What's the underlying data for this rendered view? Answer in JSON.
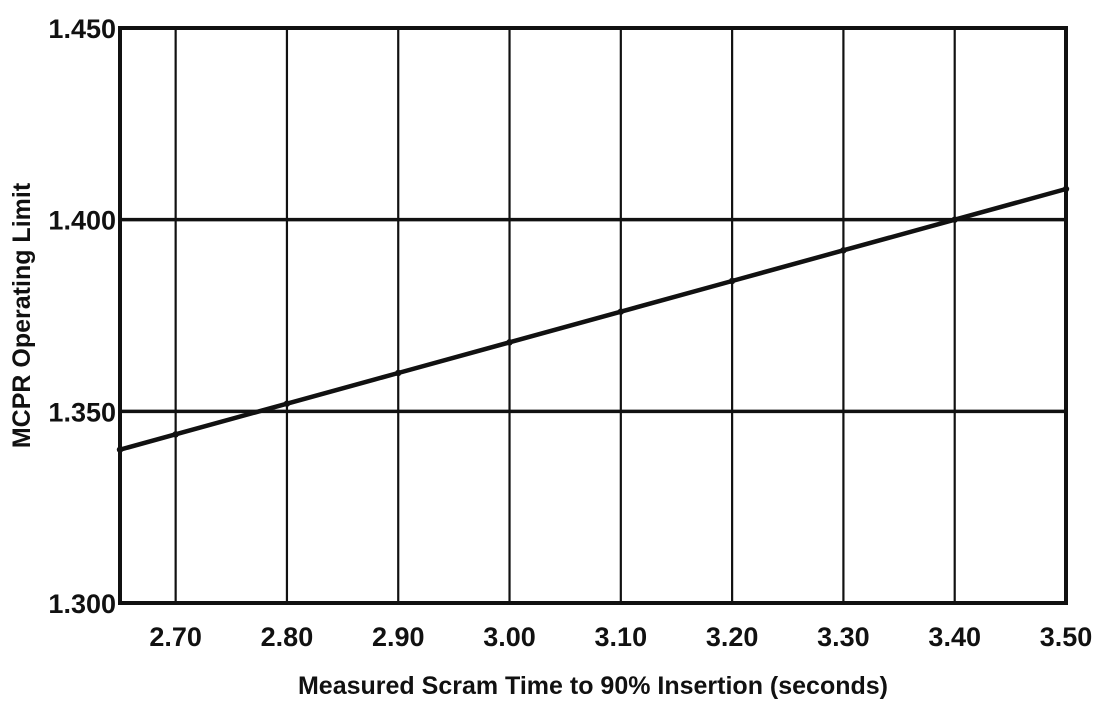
{
  "chart_data": {
    "type": "line",
    "title": "",
    "xlabel": "Measured Scram Time to 90% Insertion (seconds)",
    "ylabel": "MCPR Operating Limit",
    "xlim": [
      2.65,
      3.5
    ],
    "ylim": [
      1.3,
      1.45
    ],
    "x_ticks": [
      2.7,
      2.8,
      2.9,
      3.0,
      3.1,
      3.2,
      3.3,
      3.4,
      3.5
    ],
    "x_tick_labels": [
      "2.70",
      "2.80",
      "2.90",
      "3.00",
      "3.10",
      "3.20",
      "3.30",
      "3.40",
      "3.50"
    ],
    "y_ticks": [
      1.3,
      1.35,
      1.4,
      1.45
    ],
    "y_tick_labels": [
      "1.300",
      "1.350",
      "1.400",
      "1.450"
    ],
    "grid": {
      "vertical": true,
      "horizontal": true
    },
    "legend": "none",
    "series": [
      {
        "x": [
          2.65,
          2.7,
          2.8,
          2.9,
          3.0,
          3.1,
          3.2,
          3.3,
          3.4,
          3.5
        ],
        "values": [
          1.34,
          1.344,
          1.352,
          1.36,
          1.368,
          1.376,
          1.384,
          1.392,
          1.4,
          1.408
        ]
      }
    ],
    "colors": {
      "line": "#111111",
      "grid": "#111111",
      "background": "#ffffff"
    }
  }
}
